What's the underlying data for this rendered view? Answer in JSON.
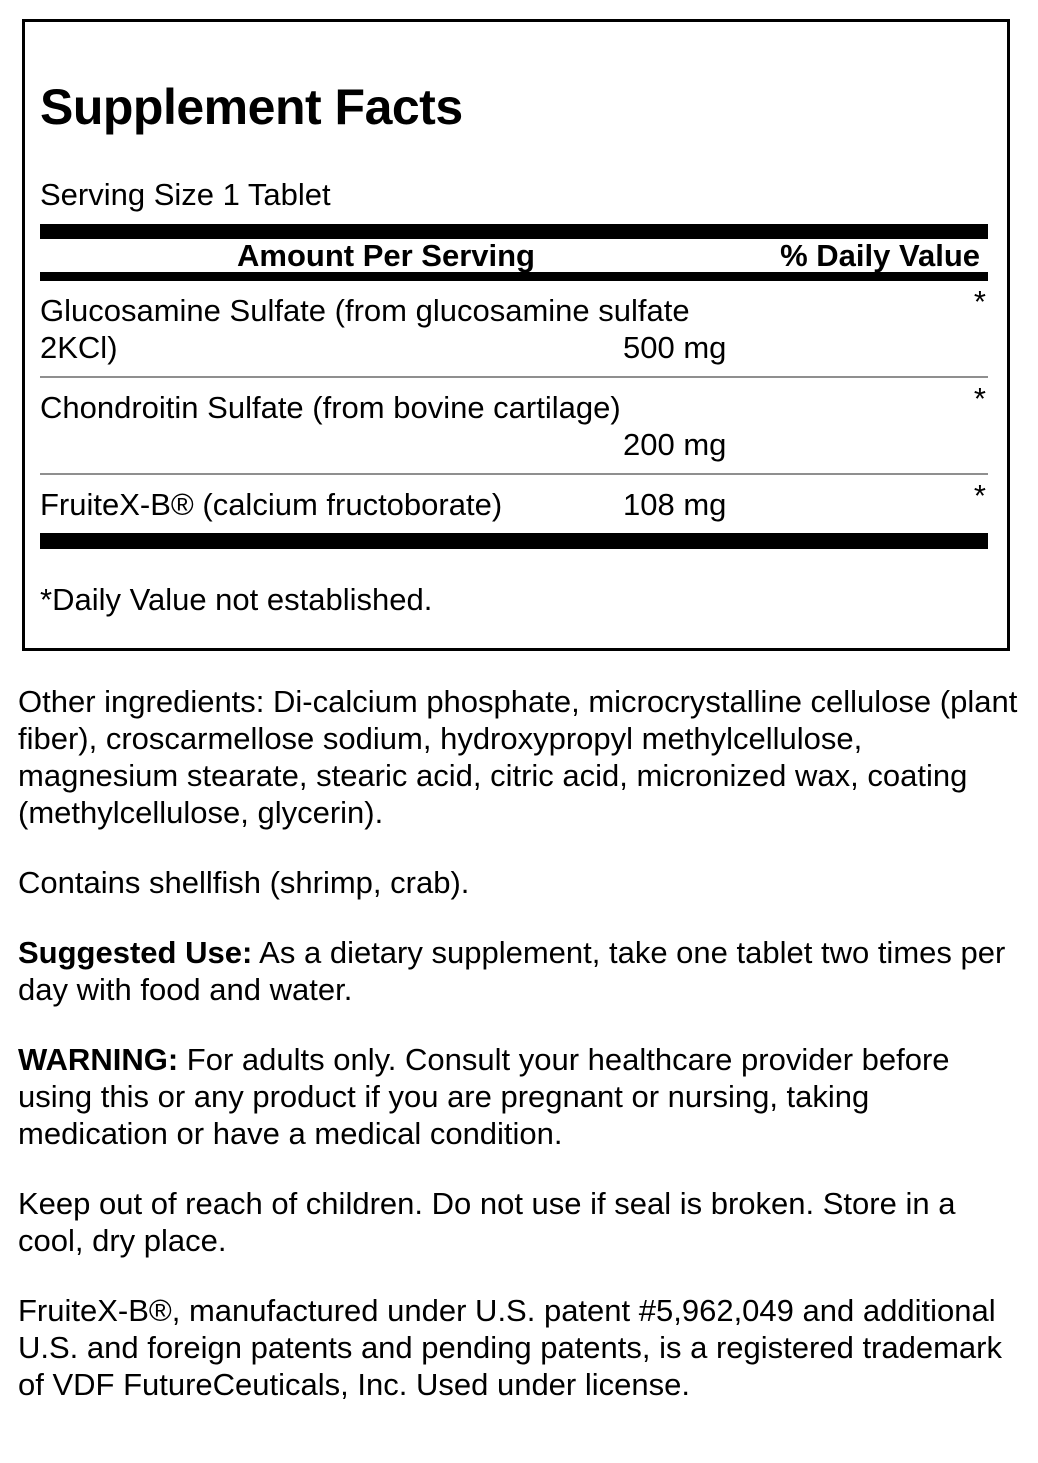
{
  "label": {
    "title": "Supplement Facts",
    "serving_size": "Serving Size 1 Tablet",
    "header": {
      "amount_col": "Amount Per Serving",
      "dv_col": "% Daily Value"
    },
    "rows": [
      {
        "name": "Glucosamine Sulfate (from glucosamine sulfate 2KCl)",
        "amount": "500 mg",
        "daily_value": "*"
      },
      {
        "name": "Chondroitin Sulfate (from bovine cartilage)",
        "amount": "200 mg",
        "daily_value": "*"
      },
      {
        "name": "FruiteX-B® (calcium fructoborate)",
        "amount": "108 mg",
        "daily_value": "*"
      }
    ],
    "footnote": "*Daily Value not established."
  },
  "info": {
    "other_ingredients": "Other ingredients: Di-calcium phosphate, microcrystalline cellulose (plant fiber), croscarmellose sodium, hydroxypropyl methylcellulose, magnesium stearate, stearic acid, citric acid, micronized wax, coating (methylcellulose, glycerin).",
    "allergen": "Contains shellfish (shrimp, crab).",
    "suggested_use_label": "Suggested Use:",
    "suggested_use_text": " As a dietary supplement, take one tablet two times per day with food and water.",
    "warning_label": "WARNING:",
    "warning_text": " For adults only. Consult your healthcare provider before using this or any product if you are pregnant or nursing, taking medication or have a medical condition.",
    "storage": "Keep out of reach of children. Do not use if seal is broken. Store in a cool, dry place.",
    "trademark": "FruiteX-B®, manufactured under U.S. patent #5,962,049 and additional U.S. and foreign patents and pending patents, is a registered trademark of VDF FutureCeuticals, Inc. Used under license."
  },
  "colors": {
    "background": "#ffffff",
    "text": "#000000",
    "bars": "#000000",
    "divider": "#8f8f8f"
  }
}
